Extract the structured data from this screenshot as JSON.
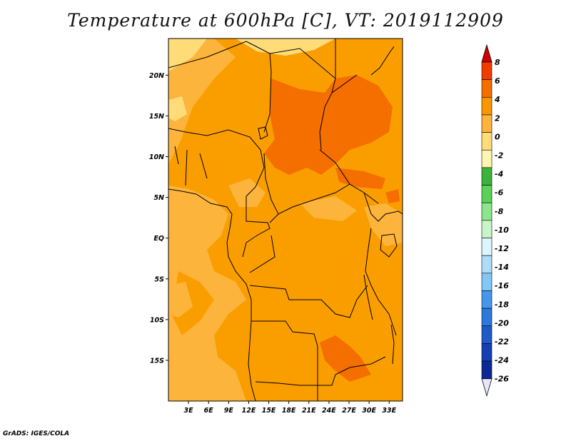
{
  "title": "Temperature at 600hPa [C], VT: 2019112909",
  "credit": "GrADS: IGES/COLA",
  "map": {
    "lon_range": [
      0,
      35
    ],
    "lat_range": [
      -20,
      24.5
    ],
    "lon_ticks": [
      "3E",
      "6E",
      "9E",
      "12E",
      "15E",
      "18E",
      "21E",
      "24E",
      "27E",
      "30E",
      "33E"
    ],
    "lat_ticks": [
      "20N",
      "15N",
      "10N",
      "5N",
      "EQ",
      "5S",
      "10S",
      "15S"
    ],
    "dominant_band": "2 to 4",
    "warm_band": "4 to 6",
    "cool_band": "0 to 2"
  },
  "colorbar": {
    "labels": [
      "8",
      "6",
      "4",
      "2",
      "0",
      "-2",
      "-4",
      "-6",
      "-8",
      "-10",
      "-12",
      "-14",
      "-16",
      "-18",
      "-20",
      "-22",
      "-24",
      "-26"
    ],
    "colors": [
      "#c80000",
      "#f03c00",
      "#f56e00",
      "#fa9600",
      "#fdb43c",
      "#ffdc78",
      "#fff5b0",
      "#3cb43c",
      "#5ad25a",
      "#8ce68c",
      "#c8f5c8",
      "#dcf5ff",
      "#afdcfa",
      "#82c8f5",
      "#4696eb",
      "#2d78dc",
      "#1e5ac8",
      "#1440b4",
      "#0a2896",
      "#0a0a6e"
    ],
    "top_arrow_color": "#d20000",
    "bottom_arrow_color": "#e6e6fa"
  }
}
